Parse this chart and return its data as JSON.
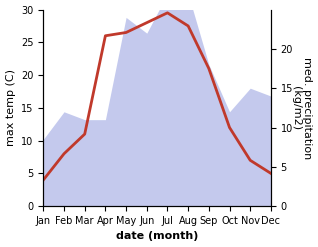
{
  "months": [
    "Jan",
    "Feb",
    "Mar",
    "Apr",
    "May",
    "Jun",
    "Jul",
    "Aug",
    "Sep",
    "Oct",
    "Nov",
    "Dec"
  ],
  "temperature": [
    4,
    8,
    11,
    26,
    26.5,
    28,
    29.5,
    27.5,
    21,
    12,
    7,
    5
  ],
  "precipitation": [
    8.5,
    12,
    11,
    11,
    24,
    22,
    27,
    27,
    18,
    12,
    15,
    14
  ],
  "temp_color": "#c0392b",
  "precip_color": "#b0b8e8",
  "background_color": "#ffffff",
  "xlabel": "date (month)",
  "ylabel_left": "max temp (C)",
  "ylabel_right": "med. precipitation\n(kg/m2)",
  "ylim_left": [
    0,
    30
  ],
  "ylim_right": [
    0,
    25
  ],
  "right_ticks": [
    0,
    5,
    10,
    15,
    20
  ],
  "temp_linewidth": 2.0,
  "xlabel_fontsize": 8,
  "ylabel_fontsize": 8,
  "tick_fontsize": 7
}
